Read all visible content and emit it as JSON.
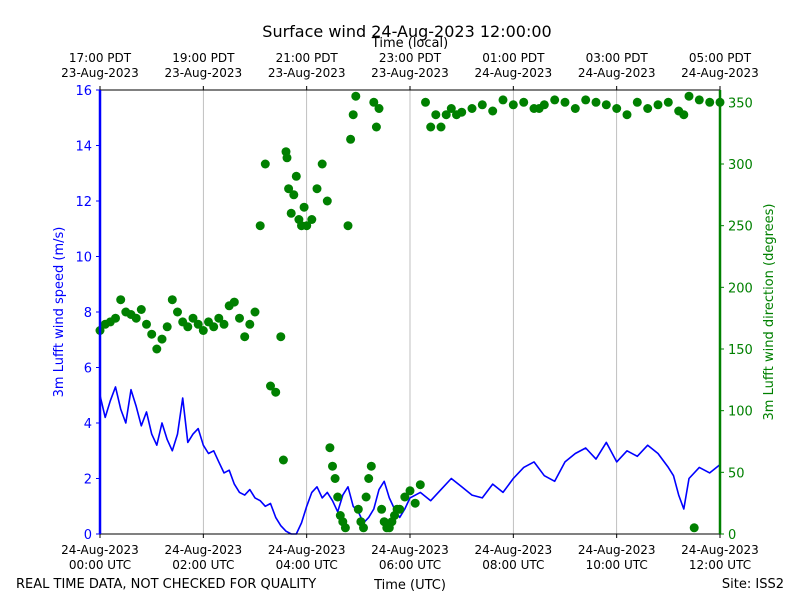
{
  "chart_data": {
    "type": "line",
    "title": "Surface wind 24-Aug-2023 12:00:00",
    "top_axis_label": "Time (local)",
    "xlabel": "Time (UTC)",
    "ylabel_left": "3m Lufft wind speed (m/s)",
    "ylabel_right": "3m Lufft wind direction (degrees)",
    "footer_left": "REAL TIME DATA, NOT CHECKED FOR QUALITY",
    "footer_right": "Site: ISS2",
    "xlim_hours": [
      0,
      12
    ],
    "ylim_left": [
      0,
      16
    ],
    "ylim_right": [
      0,
      360
    ],
    "left_ticks": [
      "0",
      "2",
      "4",
      "6",
      "8",
      "10",
      "12",
      "14",
      "16"
    ],
    "right_ticks": [
      "0",
      "50",
      "100",
      "150",
      "200",
      "250",
      "300",
      "350"
    ],
    "bottom_ticks": [
      {
        "hour": 0,
        "line1": "24-Aug-2023",
        "line2": "00:00 UTC"
      },
      {
        "hour": 2,
        "line1": "24-Aug-2023",
        "line2": "02:00 UTC"
      },
      {
        "hour": 4,
        "line1": "24-Aug-2023",
        "line2": "04:00 UTC"
      },
      {
        "hour": 6,
        "line1": "24-Aug-2023",
        "line2": "06:00 UTC"
      },
      {
        "hour": 8,
        "line1": "24-Aug-2023",
        "line2": "08:00 UTC"
      },
      {
        "hour": 10,
        "line1": "24-Aug-2023",
        "line2": "10:00 UTC"
      },
      {
        "hour": 12,
        "line1": "24-Aug-2023",
        "line2": "12:00 UTC"
      }
    ],
    "top_ticks": [
      {
        "hour": 0,
        "line1": "17:00 PDT",
        "line2": "23-Aug-2023"
      },
      {
        "hour": 2,
        "line1": "19:00 PDT",
        "line2": "23-Aug-2023"
      },
      {
        "hour": 4,
        "line1": "21:00 PDT",
        "line2": "23-Aug-2023"
      },
      {
        "hour": 6,
        "line1": "23:00 PDT",
        "line2": "23-Aug-2023"
      },
      {
        "hour": 8,
        "line1": "01:00 PDT",
        "line2": "24-Aug-2023"
      },
      {
        "hour": 10,
        "line1": "03:00 PDT",
        "line2": "24-Aug-2023"
      },
      {
        "hour": 12,
        "line1": "05:00 PDT",
        "line2": "24-Aug-2023"
      }
    ],
    "series": [
      {
        "name": "3m Lufft wind speed (m/s)",
        "axis": "left",
        "kind": "line",
        "color": "#0000ff",
        "x_hours": [
          0,
          0.1,
          0.2,
          0.3,
          0.4,
          0.5,
          0.6,
          0.7,
          0.8,
          0.9,
          1.0,
          1.1,
          1.2,
          1.3,
          1.4,
          1.5,
          1.6,
          1.7,
          1.8,
          1.9,
          2.0,
          2.1,
          2.2,
          2.3,
          2.4,
          2.5,
          2.6,
          2.7,
          2.8,
          2.9,
          3.0,
          3.1,
          3.2,
          3.3,
          3.4,
          3.5,
          3.6,
          3.7,
          3.8,
          3.9,
          4.0,
          4.1,
          4.2,
          4.3,
          4.4,
          4.5,
          4.6,
          4.7,
          4.8,
          4.9,
          5.0,
          5.1,
          5.2,
          5.3,
          5.4,
          5.5,
          5.6,
          5.7,
          5.8,
          5.9,
          6.0,
          6.2,
          6.4,
          6.6,
          6.8,
          7.0,
          7.2,
          7.4,
          7.6,
          7.8,
          8.0,
          8.2,
          8.4,
          8.6,
          8.8,
          9.0,
          9.2,
          9.4,
          9.6,
          9.8,
          10.0,
          10.2,
          10.4,
          10.6,
          10.8,
          11.0,
          11.1,
          11.2,
          11.3,
          11.4,
          11.6,
          11.8,
          12.0
        ],
        "values": [
          5.0,
          4.2,
          4.8,
          5.3,
          4.5,
          4.0,
          5.2,
          4.6,
          3.9,
          4.4,
          3.6,
          3.2,
          4.0,
          3.4,
          3.0,
          3.6,
          4.9,
          3.3,
          3.6,
          3.8,
          3.2,
          2.9,
          3.0,
          2.6,
          2.2,
          2.3,
          1.8,
          1.5,
          1.4,
          1.6,
          1.3,
          1.2,
          1.0,
          1.1,
          0.6,
          0.3,
          0.1,
          0.0,
          0.0,
          0.4,
          1.0,
          1.5,
          1.7,
          1.3,
          1.5,
          1.2,
          0.8,
          1.4,
          1.7,
          1.0,
          0.8,
          0.4,
          0.6,
          0.9,
          1.6,
          1.9,
          1.3,
          0.9,
          0.6,
          0.9,
          1.3,
          1.5,
          1.2,
          1.6,
          2.0,
          1.7,
          1.4,
          1.3,
          1.8,
          1.5,
          2.0,
          2.4,
          2.6,
          2.1,
          1.9,
          2.6,
          2.9,
          3.1,
          2.7,
          3.3,
          2.6,
          3.0,
          2.8,
          3.2,
          2.9,
          2.4,
          2.1,
          1.4,
          0.9,
          2.0,
          2.4,
          2.2,
          2.5
        ]
      },
      {
        "name": "3m Lufft wind direction (degrees)",
        "axis": "right",
        "kind": "scatter",
        "color": "#008000",
        "x_hours": [
          0,
          0.1,
          0.2,
          0.3,
          0.4,
          0.5,
          0.6,
          0.7,
          0.8,
          0.9,
          1.0,
          1.1,
          1.2,
          1.3,
          1.4,
          1.5,
          1.6,
          1.7,
          1.8,
          1.9,
          2.0,
          2.1,
          2.2,
          2.3,
          2.4,
          2.5,
          2.6,
          2.7,
          2.8,
          2.9,
          3.0,
          3.1,
          3.2,
          3.3,
          3.4,
          3.5,
          3.55,
          3.6,
          3.62,
          3.65,
          3.7,
          3.75,
          3.8,
          3.85,
          3.9,
          3.95,
          4.0,
          4.1,
          4.2,
          4.3,
          4.4,
          4.45,
          4.5,
          4.55,
          4.6,
          4.65,
          4.7,
          4.75,
          4.8,
          4.85,
          4.9,
          4.95,
          5.0,
          5.05,
          5.1,
          5.15,
          5.2,
          5.25,
          5.3,
          5.35,
          5.4,
          5.45,
          5.5,
          5.55,
          5.6,
          5.65,
          5.7,
          5.75,
          5.8,
          5.9,
          6.0,
          6.1,
          6.2,
          6.3,
          6.4,
          6.5,
          6.6,
          6.7,
          6.8,
          6.9,
          7.0,
          7.2,
          7.4,
          7.6,
          7.8,
          8.0,
          8.2,
          8.4,
          8.5,
          8.6,
          8.8,
          9.0,
          9.2,
          9.4,
          9.6,
          9.8,
          10.0,
          10.2,
          10.4,
          10.6,
          10.8,
          11.0,
          11.2,
          11.3,
          11.4,
          11.5,
          11.6,
          11.8,
          12.0
        ],
        "values": [
          165,
          170,
          172,
          175,
          190,
          180,
          178,
          175,
          182,
          170,
          162,
          150,
          158,
          168,
          190,
          180,
          172,
          168,
          175,
          170,
          165,
          172,
          168,
          175,
          170,
          185,
          188,
          175,
          160,
          170,
          180,
          250,
          300,
          120,
          115,
          160,
          60,
          310,
          305,
          280,
          260,
          275,
          290,
          255,
          250,
          265,
          250,
          255,
          280,
          300,
          270,
          70,
          55,
          45,
          30,
          15,
          10,
          5,
          250,
          320,
          340,
          355,
          20,
          10,
          5,
          30,
          45,
          55,
          350,
          330,
          345,
          20,
          10,
          5,
          5,
          10,
          15,
          20,
          20,
          30,
          35,
          25,
          40,
          350,
          330,
          340,
          330,
          340,
          345,
          340,
          342,
          345,
          348,
          343,
          352,
          348,
          350,
          345,
          345,
          348,
          352,
          350,
          345,
          352,
          350,
          348,
          345,
          340,
          350,
          345,
          348,
          350,
          343,
          340,
          355,
          5,
          352,
          350,
          350
        ]
      }
    ]
  }
}
